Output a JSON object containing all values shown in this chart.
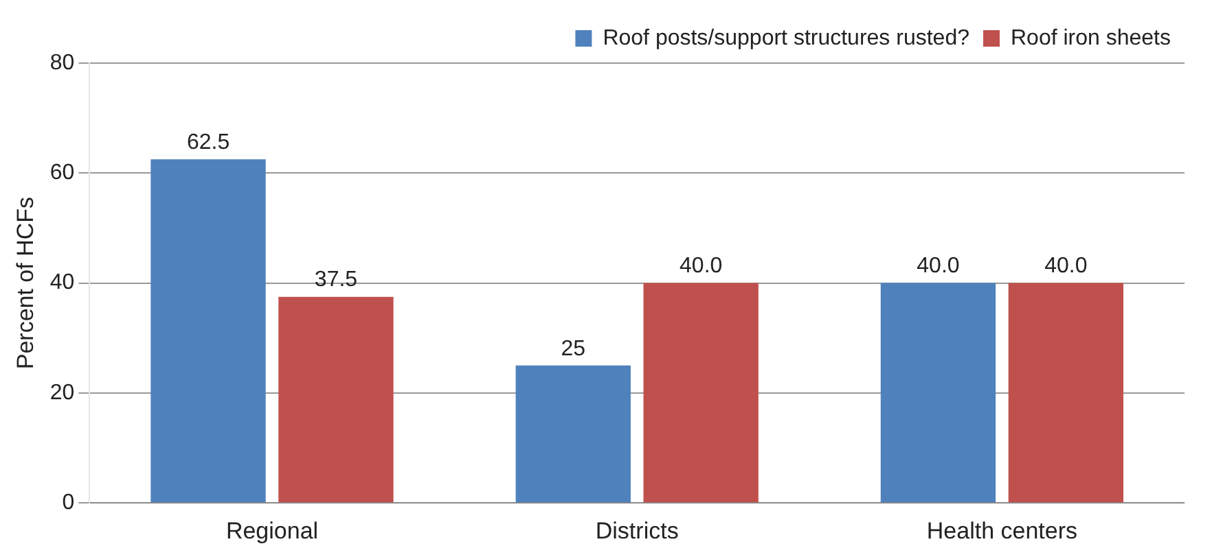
{
  "chart_data": {
    "type": "bar",
    "ylabel": "Percent of HCFs",
    "categories": [
      "Regional",
      "Districts",
      "Health centers"
    ],
    "series": [
      {
        "name": "Roof posts/support structures rusted?",
        "color": "#4f81bd",
        "values": [
          62.5,
          25,
          40.0
        ],
        "value_labels": [
          "62.5",
          "25",
          "40.0"
        ]
      },
      {
        "name": "Roof iron sheets",
        "color": "#c0504d",
        "values": [
          37.5,
          40.0,
          40.0
        ],
        "value_labels": [
          "37.5",
          "40.0",
          "40.0"
        ]
      }
    ],
    "ylim": [
      0,
      80
    ],
    "yticks": [
      0,
      20,
      40,
      60,
      80
    ],
    "grid": "y",
    "legend": "top right"
  }
}
